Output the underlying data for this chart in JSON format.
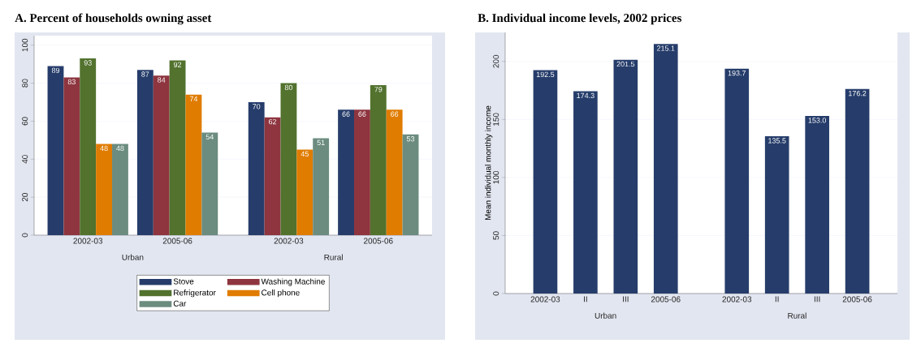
{
  "chart_data": [
    {
      "type": "bar",
      "title": "A.  Percent of households owning asset",
      "categories": [
        "2002-03",
        "2005-06",
        "2002-03",
        "2005-06"
      ],
      "annotations": [
        "Urban",
        "Rural"
      ],
      "ylim": [
        0,
        105
      ],
      "yticks": [
        0,
        20,
        40,
        60,
        80,
        100
      ],
      "grid": "y",
      "legend": "bottom",
      "series": [
        {
          "name": "Stove",
          "color": "#263d6b",
          "values": [
            89,
            87,
            70,
            66
          ],
          "value_labels": [
            "89",
            "87",
            "70",
            "66"
          ]
        },
        {
          "name": "Washing Machine",
          "color": "#8e353f",
          "values": [
            83,
            84,
            62,
            66
          ],
          "value_labels": [
            "83",
            "84",
            "62",
            "66"
          ]
        },
        {
          "name": "Refrigerator",
          "color": "#52722e",
          "values": [
            93,
            92,
            80,
            79
          ],
          "value_labels": [
            "93",
            "92",
            "80",
            "79"
          ]
        },
        {
          "name": "Cell phone",
          "color": "#e07c00",
          "values": [
            48,
            74,
            45,
            66
          ],
          "value_labels": [
            "48",
            "74",
            "45",
            "66"
          ]
        },
        {
          "name": "Car",
          "color": "#6b8c7f",
          "values": [
            48,
            54,
            51,
            53
          ],
          "value_labels": [
            "48",
            "54",
            "51",
            "53"
          ]
        }
      ]
    },
    {
      "type": "bar",
      "title": "B.  Individual income levels, 2002 prices",
      "ylabel": "Mean individual monthly income",
      "categories": [
        "2002-03",
        "II",
        "III",
        "2005-06",
        "2002-03",
        "II",
        "III",
        "2005-06"
      ],
      "annotations": [
        "Urban",
        "Rural"
      ],
      "ylim": [
        0,
        225
      ],
      "yticks": [
        0,
        50,
        100,
        150,
        200
      ],
      "grid": "y",
      "color": "#263d6b",
      "values": [
        192.5,
        174.3,
        201.5,
        215.1,
        193.7,
        135.5,
        153.0,
        176.2
      ],
      "value_labels": [
        "192.5",
        "174.3",
        "201.5",
        "215.1",
        "193.7",
        "135.5",
        "153.0",
        "176.2"
      ]
    }
  ]
}
